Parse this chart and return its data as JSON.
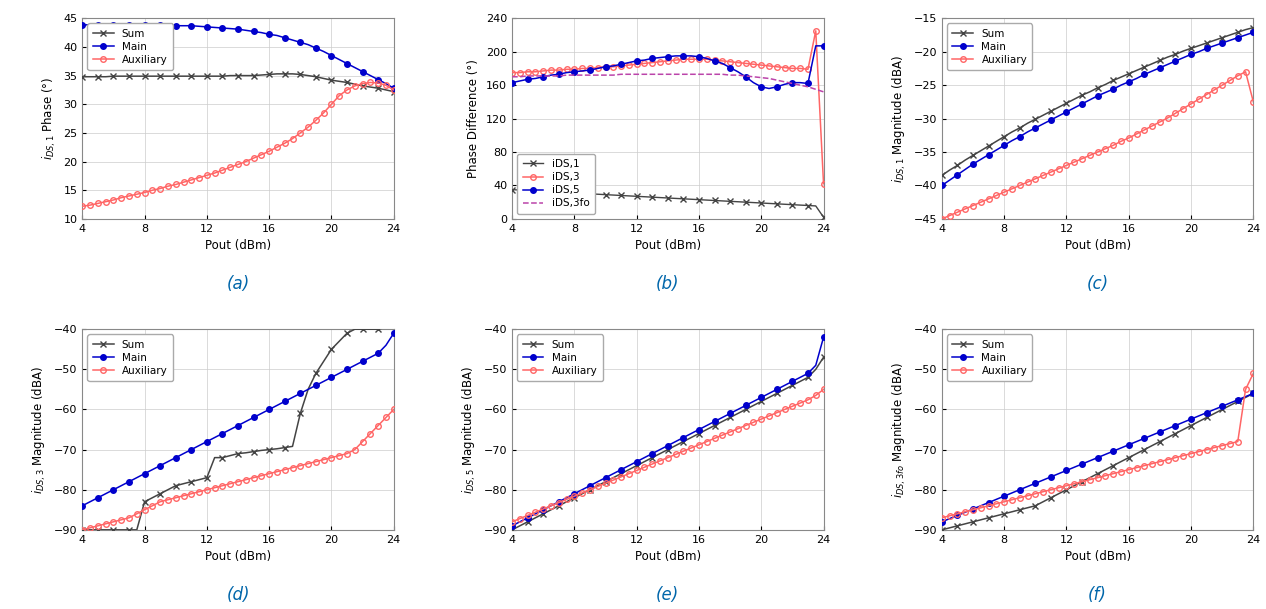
{
  "pout": [
    4,
    4.5,
    5,
    5.5,
    6,
    6.5,
    7,
    7.5,
    8,
    8.5,
    9,
    9.5,
    10,
    10.5,
    11,
    11.5,
    12,
    12.5,
    13,
    13.5,
    14,
    14.5,
    15,
    15.5,
    16,
    16.5,
    17,
    17.5,
    18,
    18.5,
    19,
    19.5,
    20,
    20.5,
    21,
    21.5,
    22,
    22.5,
    23,
    23.5,
    24
  ],
  "a_sum_phase": [
    34.8,
    34.8,
    34.8,
    34.8,
    34.9,
    34.9,
    34.9,
    34.9,
    34.9,
    34.9,
    34.9,
    34.9,
    34.9,
    34.9,
    34.9,
    34.9,
    34.9,
    34.9,
    34.9,
    35.0,
    35.0,
    35.0,
    35.0,
    35.1,
    35.2,
    35.3,
    35.3,
    35.3,
    35.2,
    35.0,
    34.8,
    34.5,
    34.2,
    34.0,
    33.8,
    33.5,
    33.2,
    33.0,
    32.8,
    32.5,
    32.2
  ],
  "a_main_phase": [
    43.8,
    43.9,
    43.9,
    43.9,
    43.9,
    43.9,
    43.9,
    43.9,
    43.8,
    43.8,
    43.8,
    43.8,
    43.7,
    43.7,
    43.7,
    43.6,
    43.5,
    43.4,
    43.3,
    43.2,
    43.1,
    42.9,
    42.7,
    42.5,
    42.2,
    42.0,
    41.6,
    41.2,
    40.8,
    40.4,
    39.8,
    39.2,
    38.5,
    37.8,
    37.1,
    36.4,
    35.7,
    35.0,
    34.3,
    33.6,
    32.8
  ],
  "a_aux_phase": [
    12.2,
    12.4,
    12.7,
    13.0,
    13.3,
    13.7,
    14.0,
    14.3,
    14.6,
    15.0,
    15.3,
    15.7,
    16.0,
    16.4,
    16.8,
    17.2,
    17.6,
    18.0,
    18.5,
    19.0,
    19.5,
    20.0,
    20.6,
    21.2,
    21.8,
    22.5,
    23.2,
    24.0,
    25.0,
    26.0,
    27.2,
    28.5,
    30.0,
    31.5,
    32.5,
    33.2,
    33.6,
    33.8,
    33.7,
    33.3,
    32.5
  ],
  "b_ids1": [
    35,
    34.5,
    34.0,
    33.5,
    33.0,
    32.5,
    32.0,
    31.5,
    31.0,
    30.5,
    30.0,
    29.5,
    29.0,
    28.5,
    28.0,
    27.5,
    27.0,
    26.5,
    26.0,
    25.5,
    25.0,
    24.5,
    24.0,
    23.5,
    23.0,
    22.5,
    22.0,
    21.5,
    21.0,
    20.5,
    20.0,
    19.5,
    19.0,
    18.5,
    18.0,
    17.5,
    17.0,
    16.5,
    16.0,
    15.5,
    2.0
  ],
  "b_ids3": [
    175,
    175,
    176,
    176,
    177,
    178,
    178,
    179,
    179,
    180,
    180,
    181,
    182,
    182,
    183,
    184,
    185,
    186,
    187,
    188,
    189,
    190,
    191,
    191,
    191,
    191,
    190,
    189,
    188,
    187,
    186,
    185,
    184,
    183,
    182,
    181,
    180,
    180,
    179,
    225,
    42
  ],
  "b_ids5": [
    163,
    165,
    167,
    168,
    170,
    172,
    173,
    175,
    176,
    177,
    178,
    180,
    182,
    183,
    185,
    187,
    189,
    190,
    192,
    193,
    194,
    195,
    195,
    195,
    194,
    192,
    189,
    186,
    181,
    176,
    170,
    163,
    158,
    156,
    158,
    161,
    163,
    163,
    162,
    207,
    207
  ],
  "b_ids3fo": [
    170,
    170,
    171,
    171,
    171,
    171,
    171,
    172,
    172,
    172,
    172,
    172,
    172,
    172,
    173,
    173,
    173,
    173,
    173,
    173,
    173,
    173,
    173,
    173,
    173,
    173,
    173,
    173,
    172,
    172,
    171,
    170,
    169,
    168,
    166,
    164,
    162,
    160,
    158,
    155,
    152
  ],
  "c_sum_mag": [
    -38.5,
    -37.7,
    -37.0,
    -36.2,
    -35.5,
    -34.8,
    -34.1,
    -33.4,
    -32.7,
    -32.0,
    -31.4,
    -30.7,
    -30.1,
    -29.5,
    -28.9,
    -28.3,
    -27.7,
    -27.1,
    -26.5,
    -26.0,
    -25.4,
    -24.9,
    -24.3,
    -23.8,
    -23.3,
    -22.8,
    -22.3,
    -21.8,
    -21.3,
    -20.8,
    -20.4,
    -19.9,
    -19.5,
    -19.1,
    -18.7,
    -18.3,
    -17.9,
    -17.5,
    -17.1,
    -16.7,
    -16.4
  ],
  "c_main_mag": [
    -40.0,
    -39.2,
    -38.4,
    -37.6,
    -36.8,
    -36.1,
    -35.4,
    -34.7,
    -34.0,
    -33.3,
    -32.7,
    -32.0,
    -31.4,
    -30.8,
    -30.2,
    -29.6,
    -29.0,
    -28.4,
    -27.8,
    -27.2,
    -26.6,
    -26.1,
    -25.6,
    -25.0,
    -24.5,
    -24.0,
    -23.4,
    -22.9,
    -22.4,
    -21.9,
    -21.4,
    -20.9,
    -20.4,
    -20.0,
    -19.5,
    -19.1,
    -18.7,
    -18.3,
    -17.9,
    -17.5,
    -17.1
  ],
  "c_aux_mag": [
    -45.0,
    -44.5,
    -44.0,
    -43.5,
    -43.0,
    -42.5,
    -42.0,
    -41.5,
    -41.0,
    -40.5,
    -40.0,
    -39.5,
    -39.0,
    -38.5,
    -38.0,
    -37.5,
    -37.0,
    -36.5,
    -36.0,
    -35.5,
    -35.0,
    -34.5,
    -34.0,
    -33.4,
    -32.9,
    -32.3,
    -31.7,
    -31.1,
    -30.5,
    -29.9,
    -29.2,
    -28.5,
    -27.8,
    -27.1,
    -26.4,
    -25.7,
    -25.0,
    -24.3,
    -23.6,
    -23.0,
    -27.5
  ],
  "d_sum_mag": [
    -90,
    -90,
    -90,
    -90,
    -90,
    -90,
    -90,
    -90,
    -83,
    -82,
    -81,
    -80,
    -79,
    -78.5,
    -78,
    -77.5,
    -77,
    -72,
    -72,
    -71.5,
    -71,
    -70.8,
    -70.5,
    -70.2,
    -70,
    -69.8,
    -69.5,
    -69.2,
    -61,
    -55,
    -51,
    -48,
    -45,
    -43,
    -41,
    -40,
    -40,
    -40,
    -40,
    -39.5,
    -39
  ],
  "d_main_mag": [
    -84,
    -83,
    -82,
    -81,
    -80,
    -79,
    -78,
    -77,
    -76,
    -75,
    -74,
    -73,
    -72,
    -71,
    -70,
    -69,
    -68,
    -67,
    -66,
    -65,
    -64,
    -63,
    -62,
    -61,
    -60,
    -59,
    -58,
    -57,
    -56,
    -55,
    -54,
    -53,
    -52,
    -51,
    -50,
    -49,
    -48,
    -47,
    -46,
    -44,
    -41
  ],
  "d_aux_mag": [
    -90,
    -89.5,
    -89,
    -88.5,
    -88,
    -87.5,
    -87,
    -86,
    -85,
    -84,
    -83,
    -82.5,
    -82,
    -81.5,
    -81,
    -80.5,
    -80,
    -79.5,
    -79,
    -78.5,
    -78,
    -77.5,
    -77,
    -76.5,
    -76,
    -75.5,
    -75,
    -74.5,
    -74,
    -73.5,
    -73,
    -72.5,
    -72,
    -71.5,
    -71,
    -70,
    -68,
    -66,
    -64,
    -62,
    -60
  ],
  "e_sum_mag": [
    -90,
    -89,
    -88,
    -87,
    -86,
    -85,
    -84,
    -83,
    -82,
    -81,
    -80,
    -79,
    -78,
    -77,
    -76,
    -75,
    -74,
    -73,
    -72,
    -71,
    -70,
    -69,
    -68,
    -67,
    -66,
    -65,
    -64,
    -63,
    -62,
    -61,
    -60,
    -59,
    -58,
    -57,
    -56,
    -55,
    -54,
    -53,
    -52,
    -50,
    -47
  ],
  "e_main_mag": [
    -89,
    -88,
    -87,
    -86,
    -85,
    -84,
    -83,
    -82,
    -81,
    -80,
    -79,
    -78,
    -77,
    -76,
    -75,
    -74,
    -73,
    -72,
    -71,
    -70,
    -69,
    -68,
    -67,
    -66,
    -65,
    -64,
    -63,
    -62,
    -61,
    -60,
    -59,
    -58,
    -57,
    -56,
    -55,
    -54,
    -53,
    -52,
    -51,
    -49,
    -42
  ],
  "e_aux_mag": [
    -88,
    -87.2,
    -86.4,
    -85.6,
    -84.8,
    -84.0,
    -83.2,
    -82.4,
    -81.6,
    -80.8,
    -80.0,
    -79.2,
    -78.4,
    -77.6,
    -76.8,
    -76.0,
    -75.2,
    -74.4,
    -73.6,
    -72.8,
    -72.0,
    -71.2,
    -70.4,
    -69.6,
    -68.8,
    -68.0,
    -67.2,
    -66.4,
    -65.6,
    -64.8,
    -64.0,
    -63.2,
    -62.4,
    -61.6,
    -60.8,
    -60.0,
    -59.2,
    -58.4,
    -57.6,
    -56.5,
    -55
  ],
  "f_sum_mag": [
    -90,
    -89.5,
    -89,
    -88.5,
    -88,
    -87.5,
    -87,
    -86.5,
    -86,
    -85.5,
    -85,
    -84.5,
    -84,
    -83,
    -82,
    -81,
    -80,
    -79,
    -78,
    -77,
    -76,
    -75,
    -74,
    -73,
    -72,
    -71,
    -70,
    -69,
    -68,
    -67,
    -66,
    -65,
    -64,
    -63,
    -62,
    -61,
    -60,
    -59,
    -58,
    -57,
    -56
  ],
  "f_main_mag": [
    -88,
    -87.2,
    -86.4,
    -85.6,
    -84.8,
    -84.0,
    -83.2,
    -82.4,
    -81.6,
    -80.8,
    -80.0,
    -79.2,
    -78.4,
    -77.6,
    -76.8,
    -76.0,
    -75.2,
    -74.4,
    -73.6,
    -72.8,
    -72.0,
    -71.2,
    -70.4,
    -69.6,
    -68.8,
    -68.0,
    -67.2,
    -66.4,
    -65.6,
    -64.8,
    -64.0,
    -63.2,
    -62.4,
    -61.6,
    -60.8,
    -60.0,
    -59.2,
    -58.4,
    -57.6,
    -56.8,
    -56
  ],
  "f_aux_mag": [
    -87,
    -86.5,
    -86,
    -85.5,
    -85,
    -84.5,
    -84,
    -83.5,
    -83,
    -82.5,
    -82,
    -81.5,
    -81,
    -80.5,
    -80,
    -79.5,
    -79,
    -78.5,
    -78,
    -77.5,
    -77,
    -76.5,
    -76,
    -75.5,
    -75,
    -74.5,
    -74,
    -73.5,
    -73,
    -72.5,
    -72,
    -71.5,
    -71,
    -70.5,
    -70,
    -69.5,
    -69,
    -68.5,
    -68,
    -55,
    -51
  ],
  "color_sum": "#444444",
  "color_main": "#0000CC",
  "color_aux": "#FF6666",
  "color_ids1": "#444444",
  "color_ids3": "#FF6666",
  "color_ids5": "#0000CC",
  "color_ids3fo": "#BB44AA",
  "subplot_labels": [
    "(a)",
    "(b)",
    "(c)",
    "(d)",
    "(e)",
    "(f)"
  ],
  "xlim": [
    4,
    24
  ],
  "xticks": [
    4,
    8,
    12,
    16,
    20,
    24
  ],
  "xlabel": "Pout (dBm)",
  "a_ylim": [
    10,
    45
  ],
  "a_yticks": [
    10,
    15,
    20,
    25,
    30,
    35,
    40,
    45
  ],
  "a_ylabel": "$i_{DS,1}$ Phase (°)",
  "b_ylim": [
    0,
    240
  ],
  "b_yticks": [
    0,
    40,
    80,
    120,
    160,
    200,
    240
  ],
  "b_ylabel": "Phase Difference (°)",
  "c_ylim": [
    -45,
    -15
  ],
  "c_yticks": [
    -45,
    -40,
    -35,
    -30,
    -25,
    -20,
    -15
  ],
  "c_ylabel": "$i_{DS,1}$ Magnitude (dBA)",
  "d_ylim": [
    -90,
    -40
  ],
  "d_yticks": [
    -90,
    -80,
    -70,
    -60,
    -50,
    -40
  ],
  "d_ylabel": "$i_{DS,3}$ Magnitude (dBA)",
  "e_ylim": [
    -90,
    -40
  ],
  "e_yticks": [
    -90,
    -80,
    -70,
    -60,
    -50,
    -40
  ],
  "e_ylabel": "$i_{DS,5}$ Magnitude (dBA)",
  "f_ylim": [
    -90,
    -40
  ],
  "f_yticks": [
    -90,
    -80,
    -70,
    -60,
    -50,
    -40
  ],
  "f_ylabel": "$i_{DS,3fo}$ Magnitude (dBA)"
}
